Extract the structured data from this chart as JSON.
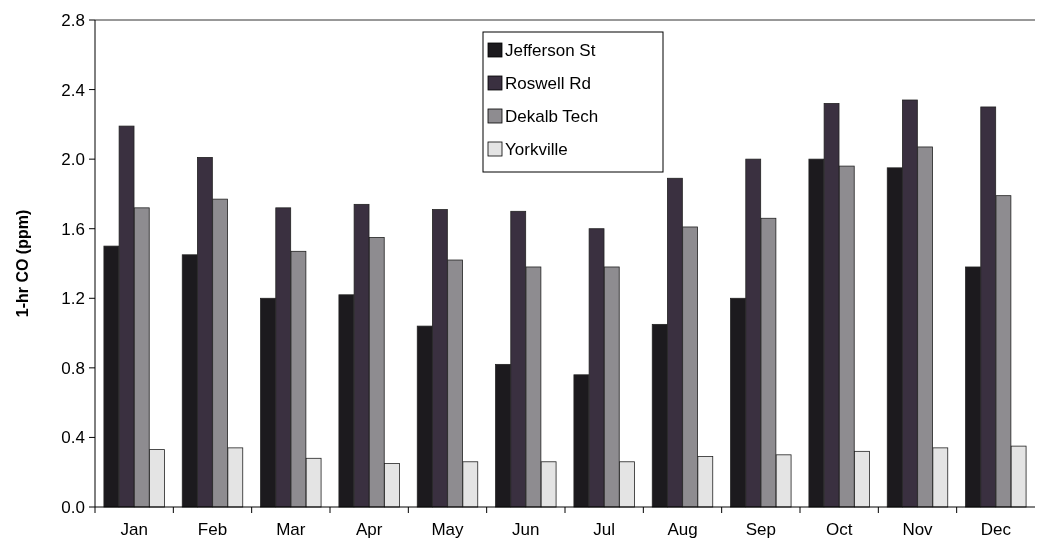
{
  "chart_data": {
    "type": "bar",
    "ylabel": "1-hr CO (ppm)",
    "categories": [
      "Jan",
      "Feb",
      "Mar",
      "Apr",
      "May",
      "Jun",
      "Jul",
      "Aug",
      "Sep",
      "Oct",
      "Nov",
      "Dec"
    ],
    "series": [
      {
        "name": "Jefferson St",
        "color": "#1c1a1e",
        "values": [
          1.5,
          1.45,
          1.2,
          1.22,
          1.04,
          0.82,
          0.76,
          1.05,
          1.2,
          2.0,
          1.95,
          1.38
        ]
      },
      {
        "name": "Roswell Rd",
        "color": "#3a3040",
        "values": [
          2.19,
          2.01,
          1.72,
          1.74,
          1.71,
          1.7,
          1.6,
          1.89,
          2.0,
          2.32,
          2.34,
          2.3
        ]
      },
      {
        "name": "Dekalb Tech",
        "color": "#8e8c90",
        "values": [
          1.72,
          1.77,
          1.47,
          1.55,
          1.42,
          1.38,
          1.38,
          1.61,
          1.66,
          1.96,
          2.07,
          1.79
        ]
      },
      {
        "name": "Yorkville",
        "color": "#e4e4e4",
        "values": [
          0.33,
          0.34,
          0.28,
          0.25,
          0.26,
          0.26,
          0.26,
          0.29,
          0.3,
          0.32,
          0.34,
          0.35
        ]
      }
    ],
    "ylim": [
      0,
      2.8
    ],
    "yticks": [
      {
        "value": 0,
        "label": "0.0"
      },
      0.4,
      0.8,
      1.2,
      1.6,
      {
        "value": 2,
        "label": "2.0"
      },
      2.4,
      2.8
    ],
    "grid": false,
    "legend": "top"
  }
}
